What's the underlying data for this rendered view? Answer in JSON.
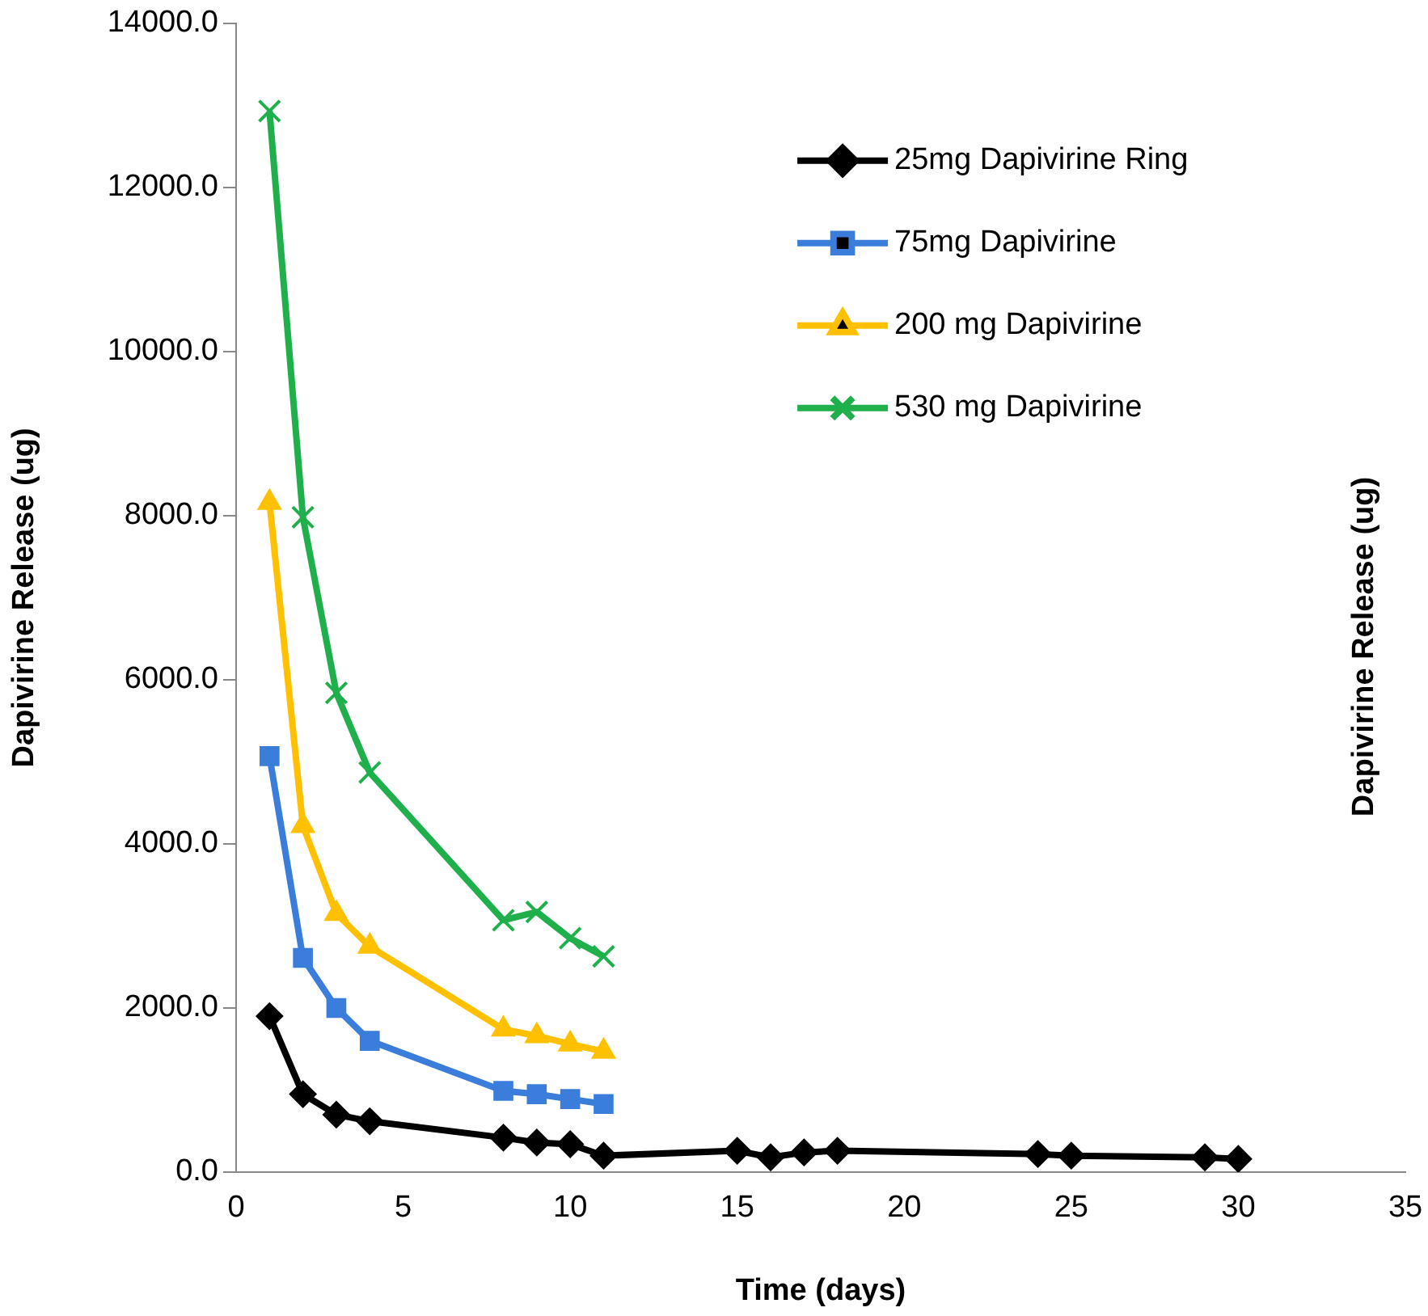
{
  "chart_data": [
    {
      "type": "line",
      "xlabel": "Time (days)",
      "ylabel": "Dapivirine Release (ug)",
      "xlim": [
        0,
        35
      ],
      "xticks": [
        0,
        5,
        10,
        15,
        20,
        25,
        30,
        35
      ],
      "ylim": [
        0,
        14000
      ],
      "yticks": [
        {
          "value": 0,
          "label": "0.0"
        },
        {
          "value": 2000,
          "label": "2000.0"
        },
        {
          "value": 4000,
          "label": "4000.0"
        },
        {
          "value": 6000,
          "label": "6000.0"
        },
        {
          "value": 8000,
          "label": "8000.0"
        },
        {
          "value": 10000,
          "label": "10000.0"
        },
        {
          "value": 12000,
          "label": "12000.0"
        },
        {
          "value": 14000,
          "label": "14000.0"
        }
      ],
      "grid": false,
      "legend": "top right",
      "line_style": "solid",
      "series": [
        {
          "name": "25mg Dapivirine Ring",
          "color": "#000000",
          "marker": "diamond",
          "x": [
            1,
            2,
            3,
            4,
            8,
            9,
            10,
            11,
            15,
            16,
            17,
            18,
            24,
            25,
            29,
            30
          ],
          "values": [
            1900,
            950,
            700,
            620,
            420,
            360,
            340,
            200,
            260,
            180,
            240,
            260,
            220,
            200,
            180,
            160
          ]
        },
        {
          "name": "75mg Dapivirine",
          "color": "#3a7dda",
          "marker": "square",
          "x": [
            1,
            2,
            3,
            4,
            8,
            9,
            10,
            11
          ],
          "values": [
            5070,
            2610,
            2000,
            1600,
            990,
            950,
            890,
            830
          ]
        },
        {
          "name": "200 mg Dapivirine",
          "color": "#ffc000",
          "marker": "triangle",
          "x": [
            1,
            2,
            3,
            4,
            8,
            9,
            10,
            11
          ],
          "values": [
            8160,
            4220,
            3150,
            2750,
            1740,
            1660,
            1560,
            1470
          ]
        },
        {
          "name": "530 mg Dapivirine",
          "color": "#1fb04c",
          "marker": "cross",
          "x": [
            1,
            2,
            3,
            4,
            8,
            9,
            10,
            11
          ],
          "values": [
            12930,
            7980,
            5840,
            4870,
            3070,
            3170,
            2850,
            2630
          ]
        }
      ]
    },
    {
      "type": "other",
      "ylabel": "Dapivirine Release (ug)"
    }
  ]
}
